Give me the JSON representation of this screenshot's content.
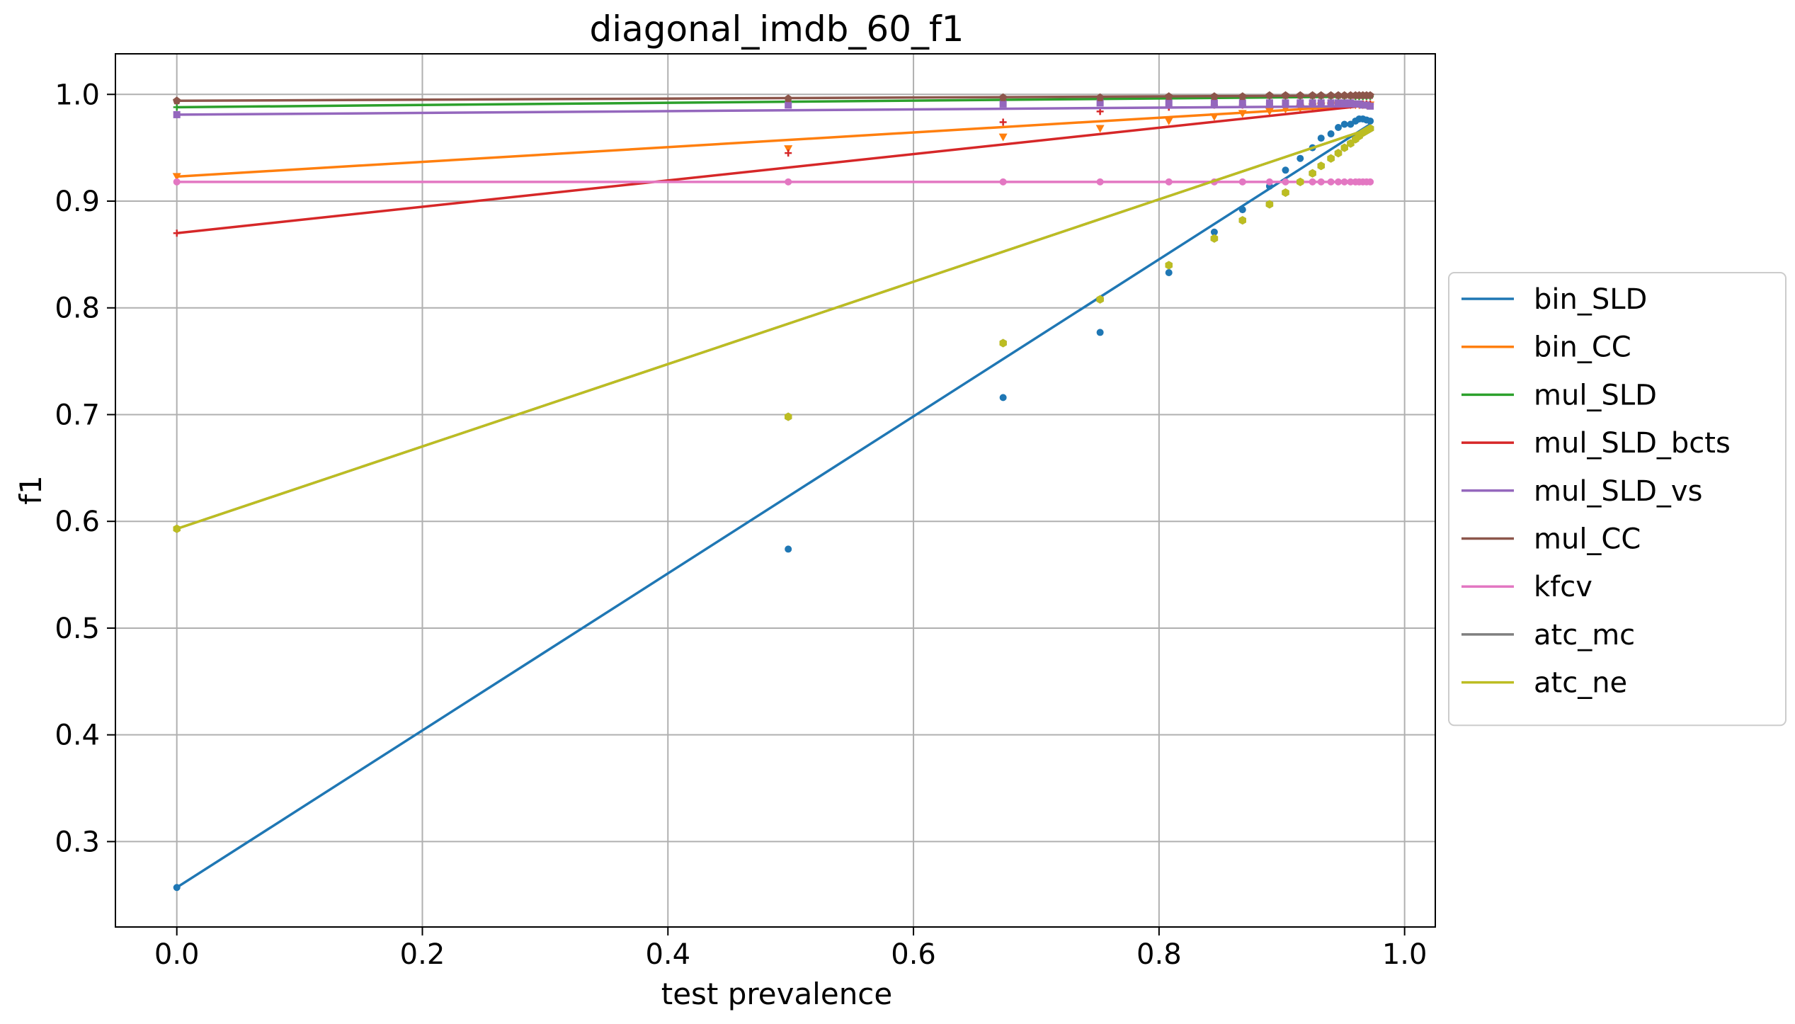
{
  "chart_data": {
    "type": "line",
    "title": "diagonal_imdb_60_f1",
    "xlabel": "test prevalence",
    "ylabel": "f1",
    "xlim": [
      -0.05,
      1.025
    ],
    "ylim": [
      0.22,
      1.038
    ],
    "xticks": [
      0.0,
      0.2,
      0.4,
      0.6,
      0.8,
      1.0
    ],
    "xtick_labels": [
      "0.0",
      "0.2",
      "0.4",
      "0.6",
      "0.8",
      "1.0"
    ],
    "yticks": [
      0.3,
      0.4,
      0.5,
      0.6,
      0.7,
      0.8,
      0.9,
      1.0
    ],
    "ytick_labels": [
      "0.3",
      "0.4",
      "0.5",
      "0.6",
      "0.7",
      "0.8",
      "0.9",
      "1.0"
    ],
    "grid": true,
    "legend_position": "right",
    "x": [
      0.0,
      0.498,
      0.673,
      0.752,
      0.808,
      0.845,
      0.868,
      0.89,
      0.903,
      0.915,
      0.925,
      0.932,
      0.94,
      0.946,
      0.951,
      0.956,
      0.96,
      0.963,
      0.966,
      0.969,
      0.972
    ],
    "series": [
      {
        "name": "bin_SLD",
        "color": "#1f77b4",
        "marker": "circle",
        "trend": [
          0.257,
          0.972
        ],
        "values": [
          0.257,
          0.574,
          0.716,
          0.777,
          0.833,
          0.871,
          0.892,
          0.914,
          0.929,
          0.94,
          0.95,
          0.959,
          0.963,
          0.969,
          0.972,
          0.972,
          0.975,
          0.977,
          0.977,
          0.976,
          0.975
        ]
      },
      {
        "name": "bin_CC",
        "color": "#ff7f0e",
        "marker": "triangle-down",
        "trend": [
          0.923,
          0.99
        ],
        "values": [
          0.923,
          0.949,
          0.96,
          0.968,
          0.975,
          0.979,
          0.982,
          0.984,
          0.986,
          0.987,
          0.988,
          0.989,
          0.989,
          0.99,
          0.99,
          0.99,
          0.99,
          0.99,
          0.99,
          0.99,
          0.99
        ]
      },
      {
        "name": "mul_SLD",
        "color": "#2ca02c",
        "marker": "plus",
        "trend": [
          0.988,
          0.998
        ],
        "values": [
          0.988,
          0.993,
          0.995,
          0.996,
          0.997,
          0.997,
          0.997,
          0.998,
          0.998,
          0.998,
          0.998,
          0.998,
          0.998,
          0.998,
          0.998,
          0.998,
          0.998,
          0.998,
          0.998,
          0.998,
          0.998
        ]
      },
      {
        "name": "mul_SLD_bcts",
        "color": "#d62728",
        "marker": "plus",
        "trend": [
          0.87,
          0.99
        ],
        "values": [
          0.87,
          0.945,
          0.974,
          0.984,
          0.988,
          0.99,
          0.99,
          0.991,
          0.991,
          0.991,
          0.991,
          0.991,
          0.991,
          0.991,
          0.991,
          0.991,
          0.991,
          0.991,
          0.991,
          0.991,
          0.991
        ]
      },
      {
        "name": "mul_SLD_vs",
        "color": "#9467bd",
        "marker": "square",
        "trend": [
          0.981,
          0.989
        ],
        "values": [
          0.981,
          0.99,
          0.991,
          0.992,
          0.992,
          0.992,
          0.992,
          0.992,
          0.992,
          0.992,
          0.992,
          0.992,
          0.992,
          0.992,
          0.992,
          0.992,
          0.991,
          0.991,
          0.99,
          0.99,
          0.989
        ]
      },
      {
        "name": "mul_CC",
        "color": "#8c564b",
        "marker": "pentagon",
        "trend": [
          0.994,
          0.999
        ],
        "values": [
          0.994,
          0.996,
          0.997,
          0.997,
          0.998,
          0.998,
          0.998,
          0.999,
          0.999,
          0.999,
          0.999,
          0.999,
          0.999,
          0.999,
          0.999,
          0.999,
          0.999,
          0.999,
          0.999,
          0.999,
          0.999
        ]
      },
      {
        "name": "kfcv",
        "color": "#e377c2",
        "marker": "circle",
        "trend": [
          0.918,
          0.918
        ],
        "values": [
          0.918,
          0.918,
          0.918,
          0.918,
          0.918,
          0.918,
          0.918,
          0.918,
          0.918,
          0.918,
          0.918,
          0.918,
          0.918,
          0.918,
          0.918,
          0.918,
          0.918,
          0.918,
          0.918,
          0.918,
          0.918
        ]
      },
      {
        "name": "atc_mc",
        "color": "#7f7f7f",
        "marker": "hexagon",
        "trend": [
          0.593,
          0.968
        ],
        "values": [
          0.593,
          0.698,
          0.767,
          0.808,
          0.84,
          0.865,
          0.882,
          0.897,
          0.908,
          0.918,
          0.926,
          0.933,
          0.94,
          0.945,
          0.95,
          0.954,
          0.958,
          0.961,
          0.964,
          0.966,
          0.968
        ]
      },
      {
        "name": "atc_ne",
        "color": "#bcbd22",
        "marker": "hexagon",
        "trend": [
          0.593,
          0.968
        ],
        "values": [
          0.593,
          0.698,
          0.767,
          0.808,
          0.84,
          0.865,
          0.882,
          0.897,
          0.908,
          0.918,
          0.926,
          0.933,
          0.94,
          0.945,
          0.95,
          0.954,
          0.958,
          0.961,
          0.964,
          0.966,
          0.968
        ]
      }
    ]
  }
}
